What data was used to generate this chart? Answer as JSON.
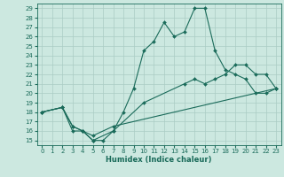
{
  "xlabel": "Humidex (Indice chaleur)",
  "bg_color": "#cce8e0",
  "line_color": "#1a6b5a",
  "grid_color": "#aaccc4",
  "xlim": [
    -0.5,
    23.5
  ],
  "ylim": [
    14.5,
    29.5
  ],
  "xticks": [
    0,
    1,
    2,
    3,
    4,
    5,
    6,
    7,
    8,
    9,
    10,
    11,
    12,
    13,
    14,
    15,
    16,
    17,
    18,
    19,
    20,
    21,
    22,
    23
  ],
  "yticks": [
    15,
    16,
    17,
    18,
    19,
    20,
    21,
    22,
    23,
    24,
    25,
    26,
    27,
    28,
    29
  ],
  "line1_x": [
    0,
    2,
    3,
    4,
    5,
    6,
    7,
    8,
    9,
    10,
    11,
    12,
    13,
    14,
    15,
    16,
    17,
    18,
    19,
    20,
    21,
    22,
    23
  ],
  "line1_y": [
    18,
    18.5,
    16,
    16,
    15,
    15,
    16,
    18,
    20.5,
    24.5,
    25.5,
    27.5,
    26,
    26.5,
    29,
    29,
    24.5,
    22.5,
    22,
    21.5,
    20,
    20,
    20.5
  ],
  "line2_x": [
    0,
    2,
    3,
    4,
    5,
    7,
    10,
    14,
    15,
    16,
    17,
    18,
    19,
    20,
    21,
    22,
    23
  ],
  "line2_y": [
    18,
    18.5,
    16.5,
    16,
    15,
    16,
    19,
    21,
    21.5,
    21,
    21.5,
    22,
    23,
    23,
    22,
    22,
    20.5
  ],
  "line3_x": [
    0,
    2,
    3,
    4,
    5,
    7,
    23
  ],
  "line3_y": [
    18,
    18.5,
    16.5,
    16,
    15.5,
    16.5,
    20.5
  ]
}
